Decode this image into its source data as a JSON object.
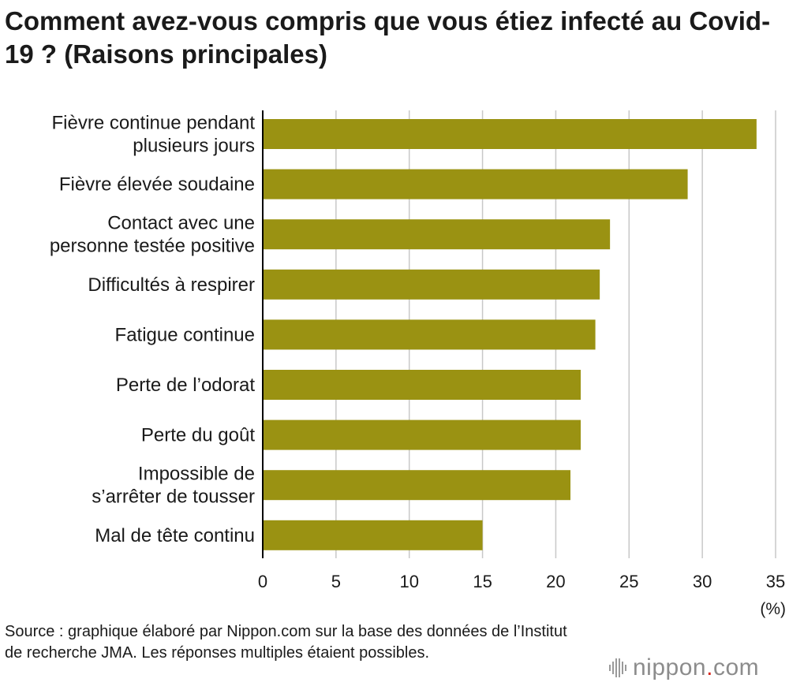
{
  "title": "Comment avez-vous compris que vous étiez infecté au Covid-19 ? (Raisons principales)",
  "source_note": "Source : graphique élaboré par Nippon.com sur la base des données de l’Institut de recherche JMA. Les réponses multiples étaient possibles.",
  "logo": {
    "name": "nippon",
    "dot": ".",
    "suffix": "com"
  },
  "colors": {
    "bar": "#9a9212",
    "grid": "#c8c8c8",
    "axis": "#000000",
    "text": "#1a1a1a"
  },
  "chart_data": {
    "type": "bar",
    "orientation": "horizontal",
    "title": "Comment avez-vous compris que vous étiez infecté au Covid-19 ? (Raisons principales)",
    "xlabel": "(%)",
    "ylabel": "",
    "xlim": [
      0,
      35
    ],
    "ticks": [
      0,
      5,
      10,
      15,
      20,
      25,
      30,
      35
    ],
    "grid": true,
    "categories": [
      [
        "Fièvre continue pendant",
        "plusieurs jours"
      ],
      [
        "Fièvre élevée soudaine"
      ],
      [
        "Contact avec une",
        "personne testée positive"
      ],
      [
        "Difficultés à respirer"
      ],
      [
        "Fatigue continue"
      ],
      [
        "Perte de l’odorat"
      ],
      [
        "Perte du goût"
      ],
      [
        "Impossible de",
        "s’arrêter de tousser"
      ],
      [
        "Mal de tête continu"
      ]
    ],
    "values": [
      33.7,
      29.0,
      23.7,
      23.0,
      22.7,
      21.7,
      21.7,
      21.0,
      15.0
    ]
  }
}
